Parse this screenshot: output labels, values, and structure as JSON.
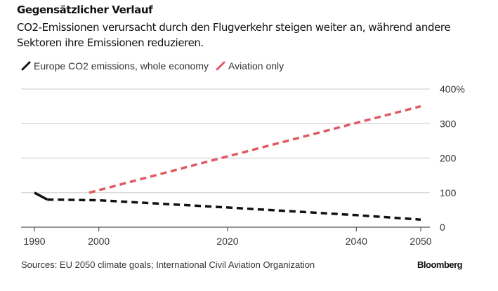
{
  "header": {
    "title": "Gegensätzlicher Verlauf",
    "subtitle": "CO2-Emissionen verursacht durch den Flugverkehr steigen weiter an, während andere Sektoren ihre Emissionen reduzieren."
  },
  "footer": {
    "source": "Sources: EU 2050 climate goals; International Civil Aviation Organization",
    "brand": "Bloomberg"
  },
  "chart_data": {
    "type": "line",
    "title": "Gegensätzlicher Verlauf",
    "subtitle": "CO2-Emissionen verursacht durch den Flugverkehr steigen weiter an, während andere Sektoren ihre Emissionen reduzieren.",
    "xlabel": "",
    "ylabel": "",
    "xlim": [
      1988,
      2052
    ],
    "ylim": [
      0,
      400
    ],
    "x_ticks": [
      1990,
      2000,
      2020,
      2040,
      2050
    ],
    "x_tick_labels": [
      "1990",
      "2000",
      "2020",
      "2040",
      "2050"
    ],
    "y_ticks": [
      0,
      100,
      200,
      300,
      400
    ],
    "y_tick_labels": [
      "0",
      "100",
      "200",
      "300",
      "400%"
    ],
    "y_axis_position": "right",
    "grid": true,
    "legend_position": "top-left",
    "series": [
      {
        "name": "Europe CO2 emissions, whole economy",
        "color": "#111111",
        "segments": [
          {
            "style": "solid",
            "points": [
              [
                1990,
                100
              ],
              [
                1992,
                80
              ]
            ]
          },
          {
            "style": "dashed",
            "points": [
              [
                1992,
                80
              ],
              [
                2000,
                78
              ],
              [
                2020,
                57
              ],
              [
                2040,
                35
              ],
              [
                2050,
                22
              ]
            ]
          }
        ]
      },
      {
        "name": "Aviation only",
        "color": "#e05a63",
        "segments": [
          {
            "style": "dashed",
            "points": [
              [
                1998.5,
                100
              ],
              [
                2020,
                205
              ],
              [
                2040,
                302
              ],
              [
                2050,
                350
              ]
            ]
          }
        ]
      }
    ]
  }
}
